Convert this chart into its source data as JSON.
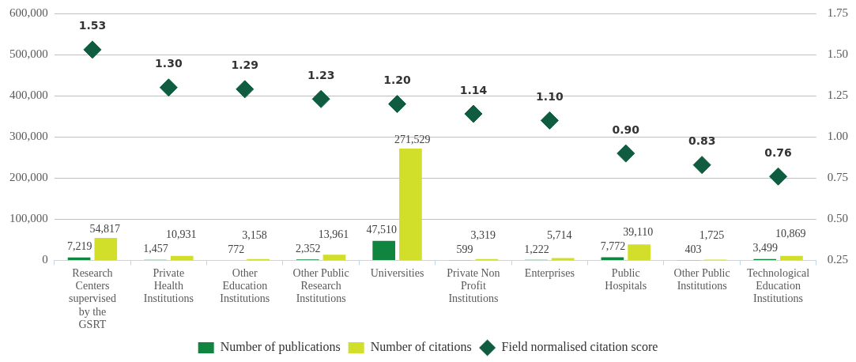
{
  "chart_data": {
    "type": "bar",
    "categories": [
      "Research Centers supervised by the GSRT",
      "Private Health Institutions",
      "Other Education Institutions",
      "Other Public Research Institutions",
      "Universities",
      "Private Non Profit Institutions",
      "Enterprises",
      "Public Hospitals",
      "Other Public Institutions",
      "Technological Education Institutions"
    ],
    "series": [
      {
        "name": "Number of publications",
        "color": "#108540",
        "values": [
          7219,
          1457,
          772,
          2352,
          47510,
          599,
          1222,
          7772,
          403,
          3499
        ],
        "value_labels": [
          "7,219",
          "1,457",
          "772",
          "2,352",
          "47,510",
          "599",
          "1,222",
          "7,772",
          "403",
          "3,499"
        ]
      },
      {
        "name": "Number of citations",
        "color": "#d1de2a",
        "values": [
          54817,
          10931,
          3158,
          13961,
          271529,
          3319,
          5714,
          39110,
          1725,
          10869
        ],
        "value_labels": [
          "54,817",
          "10,931",
          "3,158",
          "13,961",
          "271,529",
          "3,319",
          "5,714",
          "39,110",
          "1,725",
          "10,869"
        ]
      },
      {
        "name": "Field normalised citation score",
        "type": "scatter",
        "axis": "y2",
        "color": "#0f5c40",
        "marker": "diamond",
        "values": [
          1.53,
          1.3,
          1.29,
          1.23,
          1.2,
          1.14,
          1.1,
          0.9,
          0.83,
          0.76
        ],
        "value_labels": [
          "1.53",
          "1.30",
          "1.29",
          "1.23",
          "1.20",
          "1.14",
          "1.10",
          "0.90",
          "0.83",
          "0.76"
        ]
      }
    ],
    "ylim": [
      0,
      600000
    ],
    "yticks": [
      {
        "value": 0,
        "label": "0"
      },
      {
        "value": 100000,
        "label": "100,000"
      },
      {
        "value": 200000,
        "label": "200,000"
      },
      {
        "value": 300000,
        "label": "300,000"
      },
      {
        "value": 400000,
        "label": "400,000"
      },
      {
        "value": 500000,
        "label": "500,000"
      },
      {
        "value": 600000,
        "label": "600,000"
      }
    ],
    "y2lim": [
      0.25,
      1.75
    ],
    "y2ticks": [
      {
        "value": 0.25,
        "label": "0.25"
      },
      {
        "value": 0.5,
        "label": "0.50"
      },
      {
        "value": 0.75,
        "label": "0.75"
      },
      {
        "value": 1,
        "label": "1.00"
      },
      {
        "value": 1.25,
        "label": "1.25"
      },
      {
        "value": 1.5,
        "label": "1.50"
      },
      {
        "value": 1.75,
        "label": "1.75"
      }
    ],
    "grid": "y",
    "legend": "bottom"
  }
}
